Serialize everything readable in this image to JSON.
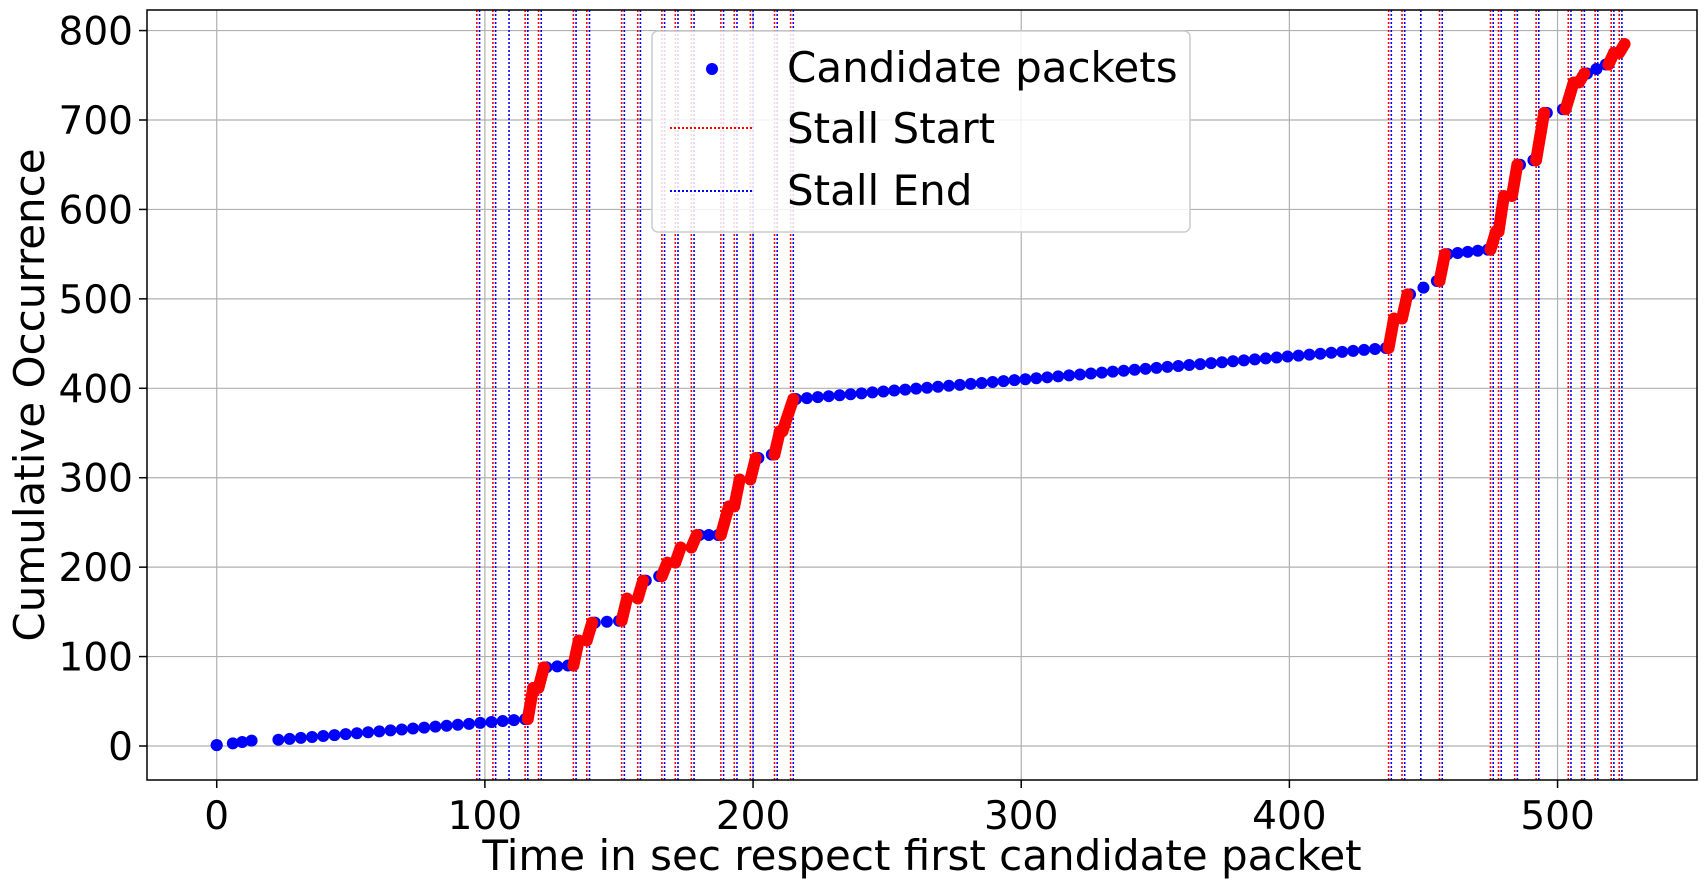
{
  "chart_data": {
    "type": "scatter",
    "title": "",
    "xlabel": "Time in sec respect first candidate packet",
    "ylabel": "Cumulative Occurrence",
    "xlim": [
      -26,
      552
    ],
    "ylim": [
      -38,
      823
    ],
    "xticks": [
      0,
      100,
      200,
      300,
      400,
      500
    ],
    "yticks": [
      0,
      100,
      200,
      300,
      400,
      500,
      600,
      700,
      800
    ],
    "grid": true,
    "legend": {
      "placement": "top-center",
      "entries": [
        {
          "label": "Candidate packets",
          "color": "#0000ff",
          "marker": "dot"
        },
        {
          "label": "Stall Start",
          "color": "#ff0000",
          "marker": "dotted-line"
        },
        {
          "label": "Stall End",
          "color": "#0000ff",
          "marker": "dotted-line"
        }
      ]
    },
    "colors": {
      "candidate": "#0000ff",
      "stall_highlight": "#ff0000",
      "stall_start": "#ff0000",
      "stall_end": "#0000ff"
    },
    "stall_start": [
      97,
      103,
      115,
      120,
      133,
      138,
      151,
      157,
      166,
      171,
      177,
      188,
      193,
      199,
      208,
      214,
      437,
      442,
      449,
      456,
      475,
      478,
      484,
      492,
      504,
      509,
      514,
      520,
      523
    ],
    "stall_end": [
      98,
      104,
      109,
      116,
      121,
      134,
      139,
      152,
      158,
      167,
      172,
      178,
      189,
      194,
      200,
      209,
      215,
      438,
      443,
      449,
      457,
      476,
      479,
      485,
      493,
      505,
      510,
      515,
      521,
      524
    ],
    "stall_segments": [
      {
        "x": [
          116,
          118
        ],
        "y": [
          30,
          65
        ]
      },
      {
        "x": [
          120,
          122
        ],
        "y": [
          65,
          88
        ]
      },
      {
        "x": [
          133,
          135
        ],
        "y": [
          90,
          118
        ]
      },
      {
        "x": [
          138,
          140
        ],
        "y": [
          118,
          138
        ]
      },
      {
        "x": [
          151,
          153
        ],
        "y": [
          140,
          165
        ]
      },
      {
        "x": [
          157,
          159
        ],
        "y": [
          165,
          185
        ]
      },
      {
        "x": [
          166,
          168
        ],
        "y": [
          190,
          205
        ]
      },
      {
        "x": [
          171,
          173
        ],
        "y": [
          205,
          222
        ]
      },
      {
        "x": [
          177,
          179
        ],
        "y": [
          222,
          236
        ]
      },
      {
        "x": [
          188,
          191
        ],
        "y": [
          236,
          268
        ]
      },
      {
        "x": [
          193,
          195
        ],
        "y": [
          268,
          298
        ]
      },
      {
        "x": [
          199,
          201
        ],
        "y": [
          298,
          322
        ]
      },
      {
        "x": [
          208,
          210
        ],
        "y": [
          326,
          352
        ]
      },
      {
        "x": [
          211,
          215
        ],
        "y": [
          352,
          388
        ]
      },
      {
        "x": [
          437,
          439
        ],
        "y": [
          445,
          478
        ]
      },
      {
        "x": [
          442,
          444
        ],
        "y": [
          478,
          505
        ]
      },
      {
        "x": [
          456,
          458
        ],
        "y": [
          520,
          550
        ]
      },
      {
        "x": [
          475,
          477
        ],
        "y": [
          555,
          575
        ]
      },
      {
        "x": [
          478,
          480
        ],
        "y": [
          575,
          615
        ]
      },
      {
        "x": [
          483,
          485
        ],
        "y": [
          615,
          650
        ]
      },
      {
        "x": [
          492,
          495
        ],
        "y": [
          655,
          708
        ]
      },
      {
        "x": [
          503,
          506
        ],
        "y": [
          712,
          742
        ]
      },
      {
        "x": [
          508,
          510
        ],
        "y": [
          742,
          752
        ]
      },
      {
        "x": [
          519,
          521
        ],
        "y": [
          762,
          775
        ]
      },
      {
        "x": [
          523,
          525
        ],
        "y": [
          775,
          785
        ]
      }
    ],
    "candidate_segments": [
      {
        "x": [
          0,
          0
        ],
        "y": [
          1,
          1
        ]
      },
      {
        "x": [
          6,
          13
        ],
        "y": [
          3,
          6
        ]
      },
      {
        "x": [
          23,
          115
        ],
        "y": [
          7,
          30
        ]
      },
      {
        "x": [
          123,
          131
        ],
        "y": [
          88,
          90
        ]
      },
      {
        "x": [
          141,
          150
        ],
        "y": [
          138,
          140
        ]
      },
      {
        "x": [
          160,
          165
        ],
        "y": [
          185,
          190
        ]
      },
      {
        "x": [
          180,
          187
        ],
        "y": [
          236,
          236
        ]
      },
      {
        "x": [
          202,
          207
        ],
        "y": [
          322,
          326
        ]
      },
      {
        "x": [
          216,
          436
        ],
        "y": [
          388,
          445
        ]
      },
      {
        "x": [
          445,
          455
        ],
        "y": [
          505,
          520
        ]
      },
      {
        "x": [
          459,
          474
        ],
        "y": [
          550,
          555
        ]
      },
      {
        "x": [
          486,
          491
        ],
        "y": [
          650,
          655
        ]
      },
      {
        "x": [
          496,
          502
        ],
        "y": [
          708,
          712
        ]
      },
      {
        "x": [
          511,
          518
        ],
        "y": [
          752,
          762
        ]
      }
    ]
  }
}
